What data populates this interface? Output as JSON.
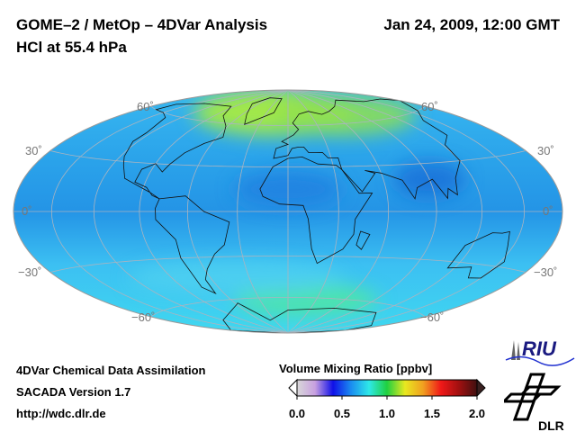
{
  "header": {
    "title": "GOME–2 / MetOp – 4DVar Analysis",
    "subtitle": "HCl at 55.4 hPa",
    "datetime": "Jan 24, 2009, 12:00 GMT"
  },
  "map": {
    "projection": "Hammer-Aitoff",
    "lat_labels": {
      "n60": "60˚",
      "n30": "30˚",
      "eq": "0˚",
      "s30": "−30˚",
      "s60": "−60˚"
    }
  },
  "footer": {
    "line1": "4DVar Chemical Data Assimilation",
    "line2": "SACADA Version 1.7",
    "line3": "http://wdc.dlr.de"
  },
  "colorbar": {
    "title": "Volume Mixing Ratio [ppbv]",
    "ticks": [
      "0.0",
      "0.5",
      "1.0",
      "1.5",
      "2.0"
    ],
    "colors": [
      "#d8d8d8",
      "#c8a0e0",
      "#1010e8",
      "#1a8cf0",
      "#2ee8e8",
      "#20d040",
      "#e8e820",
      "#f0a020",
      "#f01818",
      "#a01010",
      "#401010"
    ]
  },
  "logos": {
    "riu": "RIU",
    "dlr": "DLR"
  }
}
